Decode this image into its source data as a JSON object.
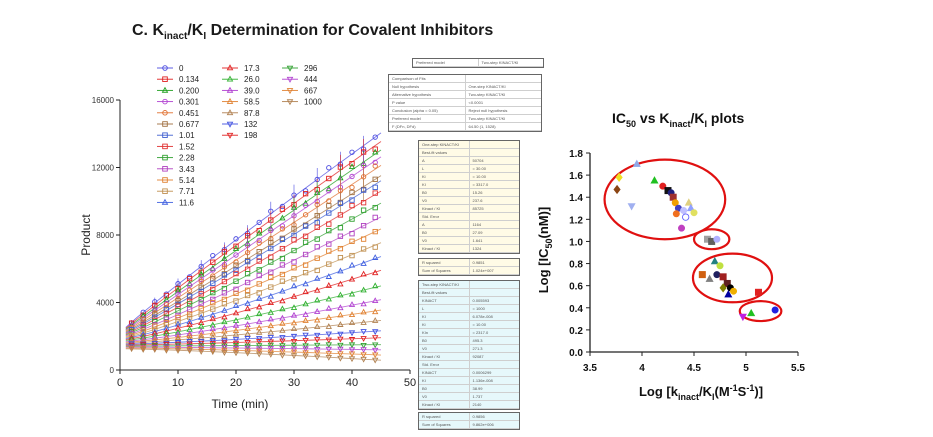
{
  "left_title": {
    "prefix": "C. K",
    "sub1": "inact",
    "mid": "/K",
    "sub2": "I",
    "suffix": " Determination for Covalent Inhibitors"
  },
  "right_title": {
    "prefix": "IC",
    "sub1": "50",
    "mid": " vs K",
    "sub2": "inact",
    "mid2": "/K",
    "sub3": "I",
    "suffix": " plots"
  },
  "chart_data": [
    {
      "type": "scatter",
      "name": "progress-curves",
      "xlabel": "Time (min)",
      "ylabel": "Product",
      "xlim": [
        0,
        50
      ],
      "ylim": [
        0,
        16000
      ],
      "xticks": [
        0,
        10,
        20,
        30,
        40,
        50
      ],
      "yticks": [
        0,
        4000,
        8000,
        12000,
        16000
      ],
      "time_points": [
        2,
        4,
        6,
        8,
        10,
        12,
        14,
        16,
        18,
        20,
        22,
        24,
        26,
        28,
        30,
        32,
        34,
        36,
        38,
        40,
        42,
        44
      ],
      "legend": [
        {
          "label": "0",
          "color": "#4a4ae0",
          "marker": "circle"
        },
        {
          "label": "0.134",
          "color": "#e02020",
          "marker": "square"
        },
        {
          "label": "0.200",
          "color": "#20a020",
          "marker": "triangle"
        },
        {
          "label": "0.301",
          "color": "#b040d0",
          "marker": "circle"
        },
        {
          "label": "0.451",
          "color": "#e07030",
          "marker": "circle"
        },
        {
          "label": "0.677",
          "color": "#a07040",
          "marker": "square"
        },
        {
          "label": "1.01",
          "color": "#4060d0",
          "marker": "square"
        },
        {
          "label": "1.52",
          "color": "#e03030",
          "marker": "square"
        },
        {
          "label": "2.28",
          "color": "#30a030",
          "marker": "square"
        },
        {
          "label": "3.43",
          "color": "#b040c0",
          "marker": "square"
        },
        {
          "label": "5.14",
          "color": "#e08030",
          "marker": "square"
        },
        {
          "label": "7.71",
          "color": "#c09050",
          "marker": "square"
        },
        {
          "label": "11.6",
          "color": "#4060e0",
          "marker": "triangle"
        },
        {
          "label": "17.3",
          "color": "#e02020",
          "marker": "triangle"
        },
        {
          "label": "26.0",
          "color": "#30b030",
          "marker": "triangle"
        },
        {
          "label": "39.0",
          "color": "#b040d0",
          "marker": "triangle"
        },
        {
          "label": "58.5",
          "color": "#e08030",
          "marker": "triangle"
        },
        {
          "label": "87.8",
          "color": "#b08050",
          "marker": "triangle"
        },
        {
          "label": "132",
          "color": "#4050e0",
          "marker": "triangle-down"
        },
        {
          "label": "198",
          "color": "#e02020",
          "marker": "triangle-down"
        },
        {
          "label": "296",
          "color": "#30a030",
          "marker": "triangle-down"
        },
        {
          "label": "444",
          "color": "#b040d0",
          "marker": "triangle-down"
        },
        {
          "label": "667",
          "color": "#e08030",
          "marker": "triangle-down"
        },
        {
          "label": "1000",
          "color": "#b08050",
          "marker": "triangle-down"
        }
      ],
      "series_final_values": [
        13800,
        13300,
        12800,
        12400,
        11900,
        11300,
        11000,
        10400,
        9700,
        8900,
        8200,
        7400,
        6600,
        5800,
        4900,
        4100,
        3500,
        2900,
        2300,
        1900,
        1500,
        1200,
        900,
        600
      ]
    },
    {
      "type": "table",
      "name": "model-comparison-tables",
      "model_selector": [
        "Preferred model",
        "Two-step KINACT/KI"
      ],
      "comparison": [
        [
          "Comparison of Fits",
          ""
        ],
        [
          "Null hypothesis",
          "One-step KINACT/KI"
        ],
        [
          "Alternative hypothesis",
          "Two-step KINACT/KI"
        ],
        [
          "P value",
          "<0.0001"
        ],
        [
          "Conclusion (alpha = 0.05)",
          "Reject null hypothesis"
        ],
        [
          "Preferred model",
          "Two-step KINACT/KI"
        ],
        [
          "F (DFn, DFd)",
          "64.50 (1, 1528)"
        ]
      ],
      "one_step": [
        [
          "One-step KINACT/KI",
          ""
        ],
        [
          "Best-fit values",
          ""
        ],
        [
          "A",
          "50704"
        ],
        [
          "L",
          "= 30.00"
        ],
        [
          "Ki",
          "= 10.00"
        ],
        [
          "KI",
          "= 3317.0"
        ],
        [
          "B0",
          "15.26"
        ],
        [
          "V0",
          "237.6"
        ],
        [
          "Kinact / KI",
          "85725"
        ],
        [
          "Std. Error",
          ""
        ],
        [
          "A",
          "1164"
        ],
        [
          "B0",
          "27.09"
        ],
        [
          "V0",
          "1.641"
        ],
        [
          "Kinact / KI",
          "1324"
        ]
      ],
      "one_step_fit": [
        [
          "R squared",
          "0.9851"
        ],
        [
          "Sum of Squares",
          "1.024e+007"
        ]
      ],
      "two_step": [
        [
          "Two-step KINACT/KI",
          ""
        ],
        [
          "Best-fit values",
          ""
        ],
        [
          "KINACT",
          "0.005593"
        ],
        [
          "L",
          "= 1000"
        ],
        [
          "KI",
          "6.078e-008"
        ],
        [
          "Ki",
          "= 10.00"
        ],
        [
          "KIn",
          "= 2317.0"
        ],
        [
          "B0",
          "495.3"
        ],
        [
          "V0",
          "271.3"
        ],
        [
          "Kinact / KI",
          "92087"
        ],
        [
          "Std. Error",
          ""
        ],
        [
          "KINACT",
          "0.0006299"
        ],
        [
          "KI",
          "1.136e-008"
        ],
        [
          "B0",
          "38.99"
        ],
        [
          "V0",
          "1.737"
        ],
        [
          "Kinact / KI",
          "2140"
        ]
      ],
      "two_step_fit": [
        [
          "R squared",
          "0.9856"
        ],
        [
          "Sum of Squares",
          "9.862e+006"
        ]
      ]
    },
    {
      "type": "scatter",
      "name": "ic50-vs-kinact-ki",
      "title": "IC50 vs Kinact/KI plots",
      "xlabel": "Log [kinact/KI(M-1S-1)]",
      "ylabel": "Log [IC50(nM)]",
      "xlim": [
        3.5,
        5.5
      ],
      "ylim": [
        0.0,
        1.8
      ],
      "xticks": [
        "3.5",
        "4",
        "4.5",
        "5",
        "5.5"
      ],
      "yticks": [
        "0.0",
        "0.2",
        "0.4",
        "0.6",
        "0.8",
        "1.0",
        "1.2",
        "1.4",
        "1.6",
        "1.8"
      ],
      "points": [
        {
          "x": 3.95,
          "y": 1.7,
          "color": "#8fa8e8",
          "marker": "triangle"
        },
        {
          "x": 3.78,
          "y": 1.58,
          "color": "#f0e020",
          "marker": "diamond"
        },
        {
          "x": 3.76,
          "y": 1.47,
          "color": "#8b4513",
          "marker": "diamond"
        },
        {
          "x": 3.9,
          "y": 1.32,
          "color": "#a0b0f0",
          "marker": "triangle-down"
        },
        {
          "x": 4.12,
          "y": 1.55,
          "color": "#20c020",
          "marker": "triangle"
        },
        {
          "x": 4.2,
          "y": 1.5,
          "color": "#e02020",
          "marker": "circle"
        },
        {
          "x": 4.25,
          "y": 1.46,
          "color": "#111111",
          "marker": "square"
        },
        {
          "x": 4.28,
          "y": 1.44,
          "color": "#202080",
          "marker": "circle"
        },
        {
          "x": 4.3,
          "y": 1.4,
          "color": "#a03030",
          "marker": "square"
        },
        {
          "x": 4.32,
          "y": 1.35,
          "color": "#f0a000",
          "marker": "circle"
        },
        {
          "x": 4.35,
          "y": 1.3,
          "color": "#4040c0",
          "marker": "circle"
        },
        {
          "x": 4.33,
          "y": 1.25,
          "color": "#f07020",
          "marker": "circle"
        },
        {
          "x": 4.4,
          "y": 1.28,
          "color": "#c0c0ff",
          "marker": "circle"
        },
        {
          "x": 4.42,
          "y": 1.22,
          "color": "#6060ff",
          "marker": "circle-open"
        },
        {
          "x": 4.45,
          "y": 1.35,
          "color": "#e0d080",
          "marker": "triangle"
        },
        {
          "x": 4.47,
          "y": 1.3,
          "color": "#90a0ff",
          "marker": "triangle"
        },
        {
          "x": 4.5,
          "y": 1.26,
          "color": "#e0e060",
          "marker": "circle"
        },
        {
          "x": 4.38,
          "y": 1.12,
          "color": "#c040c0",
          "marker": "circle"
        },
        {
          "x": 4.63,
          "y": 1.02,
          "color": "#a0a0a0",
          "marker": "square"
        },
        {
          "x": 4.67,
          "y": 1.0,
          "color": "#606060",
          "marker": "square"
        },
        {
          "x": 4.72,
          "y": 1.02,
          "color": "#b0b0ff",
          "marker": "circle"
        },
        {
          "x": 4.7,
          "y": 0.82,
          "color": "#208080",
          "marker": "triangle"
        },
        {
          "x": 4.75,
          "y": 0.78,
          "color": "#c0e040",
          "marker": "circle"
        },
        {
          "x": 4.58,
          "y": 0.7,
          "color": "#d06010",
          "marker": "square"
        },
        {
          "x": 4.65,
          "y": 0.66,
          "color": "#808080",
          "marker": "triangle"
        },
        {
          "x": 4.72,
          "y": 0.7,
          "color": "#202060",
          "marker": "circle"
        },
        {
          "x": 4.78,
          "y": 0.68,
          "color": "#a02020",
          "marker": "square"
        },
        {
          "x": 4.82,
          "y": 0.62,
          "color": "#602020",
          "marker": "square"
        },
        {
          "x": 4.78,
          "y": 0.58,
          "color": "#808000",
          "marker": "diamond"
        },
        {
          "x": 4.85,
          "y": 0.58,
          "color": "#000000",
          "marker": "circle"
        },
        {
          "x": 4.88,
          "y": 0.55,
          "color": "#f0b000",
          "marker": "circle"
        },
        {
          "x": 4.83,
          "y": 0.52,
          "color": "#0000a0",
          "marker": "triangle"
        },
        {
          "x": 5.12,
          "y": 0.54,
          "color": "#e02020",
          "marker": "square"
        },
        {
          "x": 5.28,
          "y": 0.38,
          "color": "#2020e0",
          "marker": "circle"
        },
        {
          "x": 5.05,
          "y": 0.35,
          "color": "#20c020",
          "marker": "triangle"
        },
        {
          "x": 4.97,
          "y": 0.32,
          "color": "#c020e0",
          "marker": "triangle-down"
        }
      ],
      "ellipses": [
        {
          "cx": 4.22,
          "cy": 1.38,
          "rx": 0.58,
          "ry": 0.36
        },
        {
          "cx": 4.67,
          "cy": 1.02,
          "rx": 0.17,
          "ry": 0.09
        },
        {
          "cx": 4.87,
          "cy": 0.67,
          "rx": 0.38,
          "ry": 0.22
        },
        {
          "cx": 5.14,
          "cy": 0.37,
          "rx": 0.2,
          "ry": 0.09
        }
      ]
    }
  ]
}
